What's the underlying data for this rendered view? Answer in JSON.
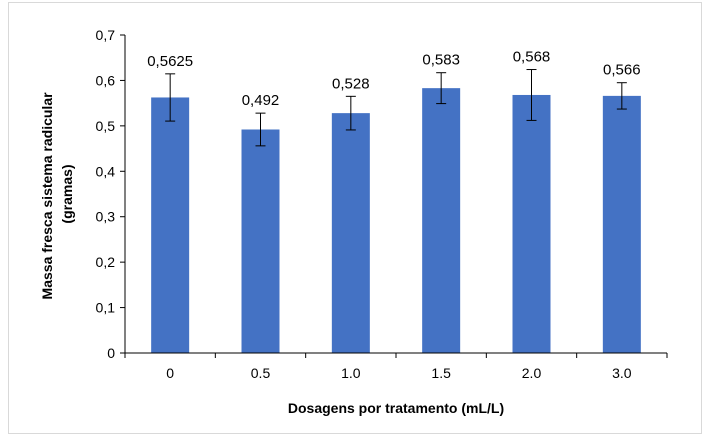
{
  "chart_data": {
    "type": "bar",
    "title": "",
    "xlabel": "Dosagens por tratamento (mL/L)",
    "ylabel_line1": "Massa fresca sistema radicular",
    "ylabel_line2": "(gramas)",
    "categories": [
      "0",
      "0.5",
      "1.0",
      "1.5",
      "2.0",
      "3.0"
    ],
    "values": [
      0.5625,
      0.492,
      0.528,
      0.583,
      0.568,
      0.566
    ],
    "data_labels": [
      "0,5625",
      "0,492",
      "0,528",
      "0,583",
      "0,568",
      "0,566"
    ],
    "error_plus_minus": [
      0.052,
      0.036,
      0.037,
      0.034,
      0.056,
      0.029
    ],
    "ylim": [
      0,
      0.7
    ],
    "yticks": [
      0,
      0.1,
      0.2,
      0.3,
      0.4,
      0.5,
      0.6,
      0.7
    ],
    "ytick_labels": [
      "0",
      "0,1",
      "0,2",
      "0,3",
      "0,4",
      "0,5",
      "0,6",
      "0,7"
    ],
    "grid": false,
    "legend": "none",
    "bar_color": "#4472C4"
  }
}
